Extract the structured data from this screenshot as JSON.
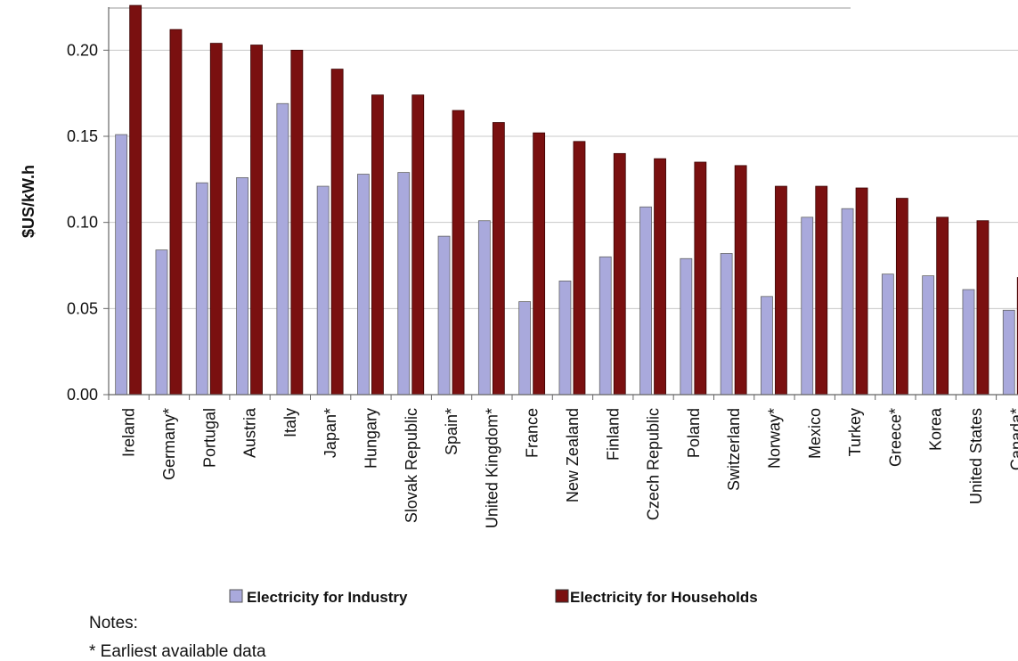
{
  "chart_data": {
    "type": "bar",
    "title": "",
    "xlabel": "",
    "ylabel": "$US/kW.h",
    "ylim": [
      0,
      0.225
    ],
    "yticks": [
      "0.00",
      "0.05",
      "0.10",
      "0.15",
      "0.20"
    ],
    "grid": true,
    "legend_position": "bottom",
    "categories": [
      "Ireland",
      "Germany*",
      "Portugal",
      "Austria",
      "Italy",
      "Japan*",
      "Hungary",
      "Slovak Republic",
      "Spain*",
      "United Kingdom*",
      "France",
      "New Zealand",
      "Finland",
      "Czech Republic",
      "Poland",
      "Switzerland",
      "Norway*",
      "Mexico",
      "Turkey",
      "Greece*",
      "Korea",
      "United States",
      "Canada*"
    ],
    "series": [
      {
        "name": "Electricity for Industry",
        "color": "#a9a9dc",
        "values": [
          0.151,
          0.084,
          0.123,
          0.126,
          0.169,
          0.121,
          0.128,
          0.129,
          0.092,
          0.101,
          0.054,
          0.066,
          0.08,
          0.109,
          0.079,
          0.082,
          0.057,
          0.103,
          0.108,
          0.07,
          0.069,
          0.061,
          0.049
        ]
      },
      {
        "name": "Electricity for Households",
        "color": "#7a1010",
        "values": [
          0.226,
          0.212,
          0.204,
          0.203,
          0.2,
          0.189,
          0.174,
          0.174,
          0.165,
          0.158,
          0.152,
          0.147,
          0.14,
          0.137,
          0.135,
          0.133,
          0.121,
          0.121,
          0.12,
          0.114,
          0.103,
          0.101,
          0.068
        ]
      }
    ]
  },
  "notes": {
    "heading": "Notes:",
    "line1": "* Earliest available data"
  }
}
